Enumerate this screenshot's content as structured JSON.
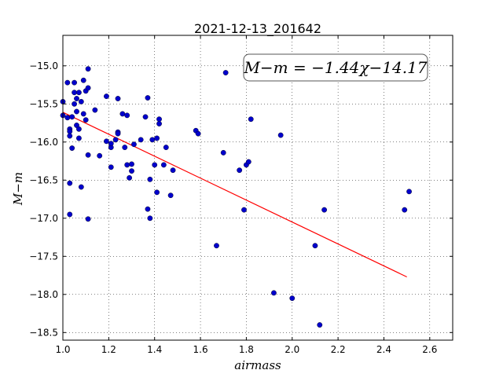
{
  "chart_data": {
    "type": "scatter",
    "title": "2021-12-13_201642",
    "xlabel": "airmass",
    "ylabel": "M−m",
    "xlim": [
      1.0,
      2.7
    ],
    "ylim": [
      -18.6,
      -14.6
    ],
    "xticks": [
      1.0,
      1.2,
      1.4,
      1.6,
      1.8,
      2.0,
      2.2,
      2.4,
      2.6
    ],
    "xtick_labels": [
      "1.0",
      "1.2",
      "1.4",
      "1.6",
      "1.8",
      "2.0",
      "2.2",
      "2.4",
      "2.6"
    ],
    "yticks": [
      -15.0,
      -15.5,
      -16.0,
      -16.5,
      -17.0,
      -17.5,
      -18.0,
      -18.5
    ],
    "ytick_labels": [
      "−15.0",
      "−15.5",
      "−16.0",
      "−16.5",
      "−17.0",
      "−17.5",
      "−18.0",
      "−18.5"
    ],
    "grid": true,
    "annotation": "M−m = −1.44χ−14.17",
    "marker_color": "#0000cc",
    "fit_color": "#ff0000",
    "fit": {
      "slope": -1.44,
      "intercept": -14.17,
      "x_range": [
        1.0,
        2.5
      ]
    },
    "points": [
      {
        "x": 1.0,
        "y": -15.47
      },
      {
        "x": 1.0,
        "y": -15.65
      },
      {
        "x": 1.02,
        "y": -15.22
      },
      {
        "x": 1.02,
        "y": -15.68
      },
      {
        "x": 1.03,
        "y": -15.83
      },
      {
        "x": 1.03,
        "y": -15.86
      },
      {
        "x": 1.03,
        "y": -15.92
      },
      {
        "x": 1.03,
        "y": -16.54
      },
      {
        "x": 1.03,
        "y": -16.95
      },
      {
        "x": 1.04,
        "y": -15.67
      },
      {
        "x": 1.04,
        "y": -16.08
      },
      {
        "x": 1.05,
        "y": -15.22
      },
      {
        "x": 1.05,
        "y": -15.35
      },
      {
        "x": 1.05,
        "y": -15.5
      },
      {
        "x": 1.06,
        "y": -15.43
      },
      {
        "x": 1.06,
        "y": -15.6
      },
      {
        "x": 1.06,
        "y": -15.78
      },
      {
        "x": 1.07,
        "y": -15.35
      },
      {
        "x": 1.07,
        "y": -15.83
      },
      {
        "x": 1.07,
        "y": -15.95
      },
      {
        "x": 1.08,
        "y": -15.47
      },
      {
        "x": 1.08,
        "y": -16.59
      },
      {
        "x": 1.09,
        "y": -15.19
      },
      {
        "x": 1.09,
        "y": -15.63
      },
      {
        "x": 1.1,
        "y": -15.71
      },
      {
        "x": 1.1,
        "y": -15.33
      },
      {
        "x": 1.11,
        "y": -15.04
      },
      {
        "x": 1.11,
        "y": -15.29
      },
      {
        "x": 1.11,
        "y": -16.17
      },
      {
        "x": 1.11,
        "y": -17.01
      },
      {
        "x": 1.14,
        "y": -15.58
      },
      {
        "x": 1.16,
        "y": -16.18
      },
      {
        "x": 1.19,
        "y": -15.4
      },
      {
        "x": 1.19,
        "y": -15.99
      },
      {
        "x": 1.21,
        "y": -16.07
      },
      {
        "x": 1.21,
        "y": -16.33
      },
      {
        "x": 1.21,
        "y": -16.02
      },
      {
        "x": 1.23,
        "y": -15.97
      },
      {
        "x": 1.24,
        "y": -15.87
      },
      {
        "x": 1.24,
        "y": -15.89
      },
      {
        "x": 1.24,
        "y": -15.43
      },
      {
        "x": 1.26,
        "y": -15.63
      },
      {
        "x": 1.27,
        "y": -16.07
      },
      {
        "x": 1.28,
        "y": -16.3
      },
      {
        "x": 1.28,
        "y": -15.65
      },
      {
        "x": 1.29,
        "y": -16.47
      },
      {
        "x": 1.3,
        "y": -16.38
      },
      {
        "x": 1.3,
        "y": -16.29
      },
      {
        "x": 1.31,
        "y": -16.03
      },
      {
        "x": 1.34,
        "y": -15.97
      },
      {
        "x": 1.36,
        "y": -15.67
      },
      {
        "x": 1.37,
        "y": -15.42
      },
      {
        "x": 1.37,
        "y": -16.88
      },
      {
        "x": 1.38,
        "y": -16.49
      },
      {
        "x": 1.38,
        "y": -17.0
      },
      {
        "x": 1.39,
        "y": -15.97
      },
      {
        "x": 1.4,
        "y": -16.3
      },
      {
        "x": 1.41,
        "y": -15.95
      },
      {
        "x": 1.41,
        "y": -16.66
      },
      {
        "x": 1.42,
        "y": -15.7
      },
      {
        "x": 1.42,
        "y": -15.76
      },
      {
        "x": 1.44,
        "y": -16.3
      },
      {
        "x": 1.45,
        "y": -16.07
      },
      {
        "x": 1.47,
        "y": -16.7
      },
      {
        "x": 1.48,
        "y": -16.37
      },
      {
        "x": 1.58,
        "y": -15.85
      },
      {
        "x": 1.59,
        "y": -15.89
      },
      {
        "x": 1.67,
        "y": -17.36
      },
      {
        "x": 1.7,
        "y": -16.14
      },
      {
        "x": 1.71,
        "y": -15.09
      },
      {
        "x": 1.77,
        "y": -16.37
      },
      {
        "x": 1.79,
        "y": -16.89
      },
      {
        "x": 1.8,
        "y": -16.3
      },
      {
        "x": 1.81,
        "y": -16.26
      },
      {
        "x": 1.82,
        "y": -15.7
      },
      {
        "x": 1.92,
        "y": -17.98
      },
      {
        "x": 1.95,
        "y": -15.91
      },
      {
        "x": 2.0,
        "y": -18.05
      },
      {
        "x": 2.1,
        "y": -17.36
      },
      {
        "x": 2.12,
        "y": -18.4
      },
      {
        "x": 2.14,
        "y": -16.89
      },
      {
        "x": 2.49,
        "y": -16.89
      },
      {
        "x": 2.51,
        "y": -16.65
      }
    ]
  }
}
